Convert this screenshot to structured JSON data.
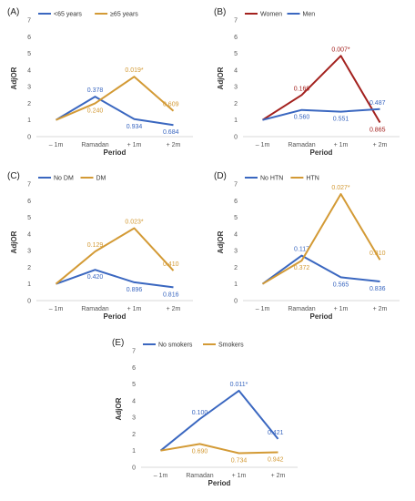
{
  "colors": {
    "blue": "#3a67c0",
    "orange": "#d39a35",
    "red": "#a3211e",
    "text": "#333333"
  },
  "chart_data": [
    {
      "type": "line",
      "panel_label": "(A)",
      "categories": [
        "– 1m",
        "Ramadan",
        "+ 1m",
        "+ 2m"
      ],
      "xlabel": "Period",
      "ylabel": "AdjOR",
      "ylim": [
        0,
        7
      ],
      "yticks": [
        0,
        1,
        2,
        3,
        4,
        5,
        6,
        7
      ],
      "legend": "top-left",
      "grid": false,
      "series": [
        {
          "name": "<65 years",
          "color": "#3a67c0",
          "values": [
            1.0,
            2.4,
            1.05,
            0.7
          ],
          "labels": [
            "",
            "0.378",
            "0.934",
            "0.684"
          ],
          "label_pos": [
            "",
            "above",
            "below",
            "below"
          ]
        },
        {
          "name": "≥65 years",
          "color": "#d39a35",
          "values": [
            1.0,
            2.0,
            3.6,
            1.55
          ],
          "labels": [
            "",
            "0.240",
            "0.019*",
            "0.609"
          ],
          "label_pos": [
            "",
            "below",
            "above",
            "above"
          ]
        }
      ]
    },
    {
      "type": "line",
      "panel_label": "(B)",
      "categories": [
        "– 1m",
        "Ramadan",
        "+ 1m",
        "+ 2m"
      ],
      "xlabel": "Period",
      "ylabel": "AdjOR",
      "ylim": [
        0,
        7
      ],
      "yticks": [
        0,
        1,
        2,
        3,
        4,
        5,
        6,
        7
      ],
      "legend": "top-left",
      "grid": false,
      "series": [
        {
          "name": "Women",
          "color": "#a3211e",
          "values": [
            1.0,
            2.5,
            4.85,
            0.85
          ],
          "labels": [
            "",
            "0.169",
            "0.007*",
            "0.865"
          ],
          "label_pos": [
            "",
            "above",
            "above",
            "below"
          ]
        },
        {
          "name": "Men",
          "color": "#3a67c0",
          "values": [
            1.0,
            1.6,
            1.5,
            1.65
          ],
          "labels": [
            "",
            "0.560",
            "0.551",
            "0.487"
          ],
          "label_pos": [
            "",
            "below",
            "below",
            "above"
          ]
        }
      ]
    },
    {
      "type": "line",
      "panel_label": "(C)",
      "categories": [
        "– 1m",
        "Ramadan",
        "+ 1m",
        "+ 2m"
      ],
      "xlabel": "Period",
      "ylabel": "AdjOR",
      "ylim": [
        0,
        7
      ],
      "yticks": [
        0,
        1,
        2,
        3,
        4,
        5,
        6,
        7
      ],
      "legend": "top-left",
      "grid": false,
      "series": [
        {
          "name": "No DM",
          "color": "#3a67c0",
          "values": [
            1.0,
            1.85,
            1.1,
            0.8
          ],
          "labels": [
            "",
            "0.420",
            "0.896",
            "0.816"
          ],
          "label_pos": [
            "",
            "below",
            "below",
            "below"
          ]
        },
        {
          "name": "DM",
          "color": "#d39a35",
          "values": [
            1.0,
            2.95,
            4.35,
            1.8
          ],
          "labels": [
            "",
            "0.129",
            "0.023*",
            "0.410"
          ],
          "label_pos": [
            "",
            "above",
            "above",
            "above"
          ]
        }
      ]
    },
    {
      "type": "line",
      "panel_label": "(D)",
      "categories": [
        "– 1m",
        "Ramadan",
        "+ 1m",
        "+ 2m"
      ],
      "xlabel": "Period",
      "ylabel": "AdjOR",
      "ylim": [
        0,
        7
      ],
      "yticks": [
        0,
        1,
        2,
        3,
        4,
        5,
        6,
        7
      ],
      "legend": "top-left",
      "grid": false,
      "series": [
        {
          "name": "No HTN",
          "color": "#3a67c0",
          "values": [
            1.0,
            2.7,
            1.4,
            1.15
          ],
          "labels": [
            "",
            "0.117",
            "0.565",
            "0.836"
          ],
          "label_pos": [
            "",
            "above",
            "below",
            "below"
          ]
        },
        {
          "name": "HTN",
          "color": "#d39a35",
          "values": [
            1.0,
            2.4,
            6.4,
            2.45
          ],
          "labels": [
            "",
            "0.372",
            "0.027*",
            "0.310"
          ],
          "label_pos": [
            "",
            "below",
            "above",
            "above"
          ]
        }
      ]
    },
    {
      "type": "line",
      "panel_label": "(E)",
      "categories": [
        "– 1m",
        "Ramadan",
        "+ 1m",
        "+ 2m"
      ],
      "xlabel": "Period",
      "ylabel": "AdjOR",
      "ylim": [
        0,
        7
      ],
      "yticks": [
        0,
        1,
        2,
        3,
        4,
        5,
        6,
        7
      ],
      "legend": "top-left",
      "grid": false,
      "series": [
        {
          "name": "No smokers",
          "color": "#3a67c0",
          "values": [
            1.0,
            2.9,
            4.6,
            1.7
          ],
          "labels": [
            "",
            "0.100",
            "0.011*",
            "0.421"
          ],
          "label_pos": [
            "",
            "above",
            "above",
            "above"
          ]
        },
        {
          "name": "Smokers",
          "color": "#d39a35",
          "values": [
            1.0,
            1.4,
            0.85,
            0.9
          ],
          "labels": [
            "",
            "0.690",
            "0.734",
            "0.942"
          ],
          "label_pos": [
            "",
            "below",
            "below",
            "below"
          ]
        }
      ]
    }
  ]
}
